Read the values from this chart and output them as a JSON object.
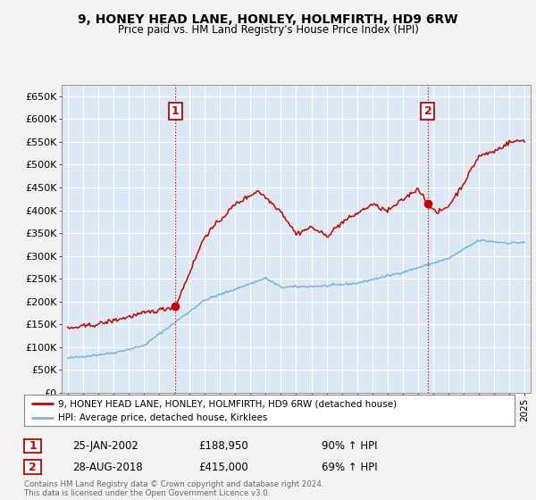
{
  "title": "9, HONEY HEAD LANE, HONLEY, HOLMFIRTH, HD9 6RW",
  "subtitle": "Price paid vs. HM Land Registry's House Price Index (HPI)",
  "legend_line1": "9, HONEY HEAD LANE, HONLEY, HOLMFIRTH, HD9 6RW (detached house)",
  "legend_line2": "HPI: Average price, detached house, Kirklees",
  "annotation1": {
    "label": "1",
    "date": "25-JAN-2002",
    "price": "£188,950",
    "hpi": "90% ↑ HPI",
    "x_year": 2002.07
  },
  "annotation2": {
    "label": "2",
    "date": "28-AUG-2018",
    "price": "£415,000",
    "hpi": "69% ↑ HPI",
    "x_year": 2018.65
  },
  "footer": "Contains HM Land Registry data © Crown copyright and database right 2024.\nThis data is licensed under the Open Government Licence v3.0.",
  "red_color": "#cc0000",
  "blue_color": "#7ab3d4",
  "vline_color": "#cc0000",
  "background_color": "#f2f2f2",
  "plot_bg_color": "#dce9f5",
  "ylim": [
    0,
    675000
  ],
  "xlim_start": 1994.6,
  "xlim_end": 2025.4,
  "yticks": [
    0,
    50000,
    100000,
    150000,
    200000,
    250000,
    300000,
    350000,
    400000,
    450000,
    500000,
    550000,
    600000,
    650000
  ],
  "ytick_labels": [
    "£0",
    "£50K",
    "£100K",
    "£150K",
    "£200K",
    "£250K",
    "£300K",
    "£350K",
    "£400K",
    "£450K",
    "£500K",
    "£550K",
    "£600K",
    "£650K"
  ],
  "xticks": [
    1995,
    1996,
    1997,
    1998,
    1999,
    2000,
    2001,
    2002,
    2003,
    2004,
    2005,
    2006,
    2007,
    2008,
    2009,
    2010,
    2011,
    2012,
    2013,
    2014,
    2015,
    2016,
    2017,
    2018,
    2019,
    2020,
    2021,
    2022,
    2023,
    2024,
    2025
  ],
  "sale1_price": 188950,
  "sale2_price": 415000
}
